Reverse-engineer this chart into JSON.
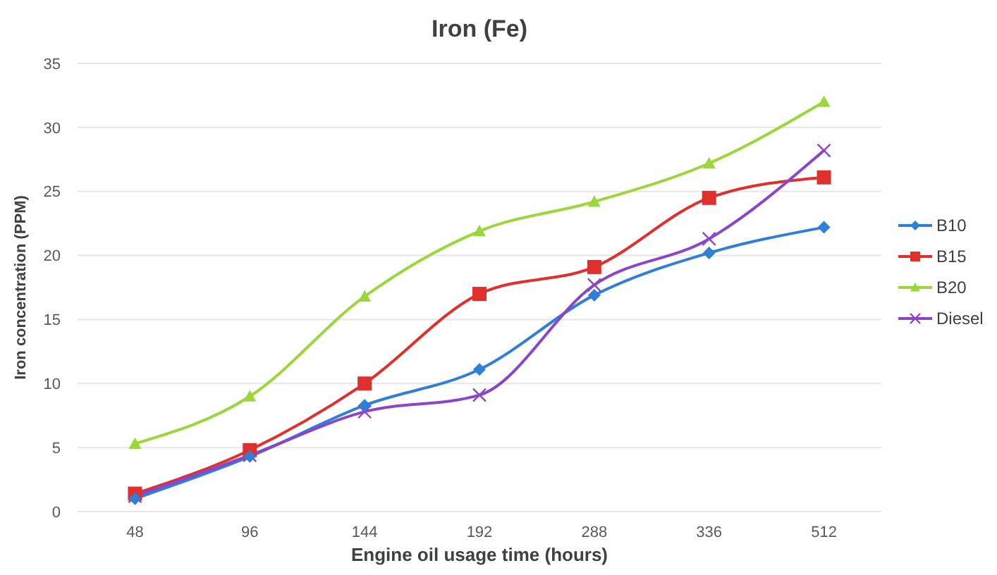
{
  "chart_data": {
    "type": "line",
    "title": "Iron (Fe)",
    "xlabel": "Engine oil usage time (hours)",
    "ylabel": "Iron concentration (PPM)",
    "categories": [
      "48",
      "96",
      "144",
      "192",
      "288",
      "336",
      "512"
    ],
    "series": [
      {
        "name": "B10",
        "color": "#2f7fd6",
        "marker": "diamond",
        "values": [
          1.0,
          4.3,
          8.3,
          11.1,
          16.9,
          20.2,
          22.2
        ]
      },
      {
        "name": "B15",
        "color": "#e0302d",
        "marker": "square",
        "values": [
          1.4,
          4.8,
          10.0,
          17.0,
          19.1,
          24.5,
          26.1
        ]
      },
      {
        "name": "B20",
        "color": "#9ad73a",
        "marker": "triangle",
        "values": [
          5.3,
          9.0,
          16.8,
          21.9,
          24.2,
          27.2,
          32.0
        ]
      },
      {
        "name": "Diesel",
        "color": "#8a45c8",
        "marker": "cross",
        "values": [
          1.2,
          4.4,
          7.8,
          9.1,
          17.7,
          21.3,
          28.2
        ]
      }
    ],
    "ylim": [
      0,
      35
    ],
    "yticks": [
      0,
      5,
      10,
      15,
      20,
      25,
      30,
      35
    ],
    "grid": "y",
    "legend": "right",
    "line_style": "solid"
  }
}
